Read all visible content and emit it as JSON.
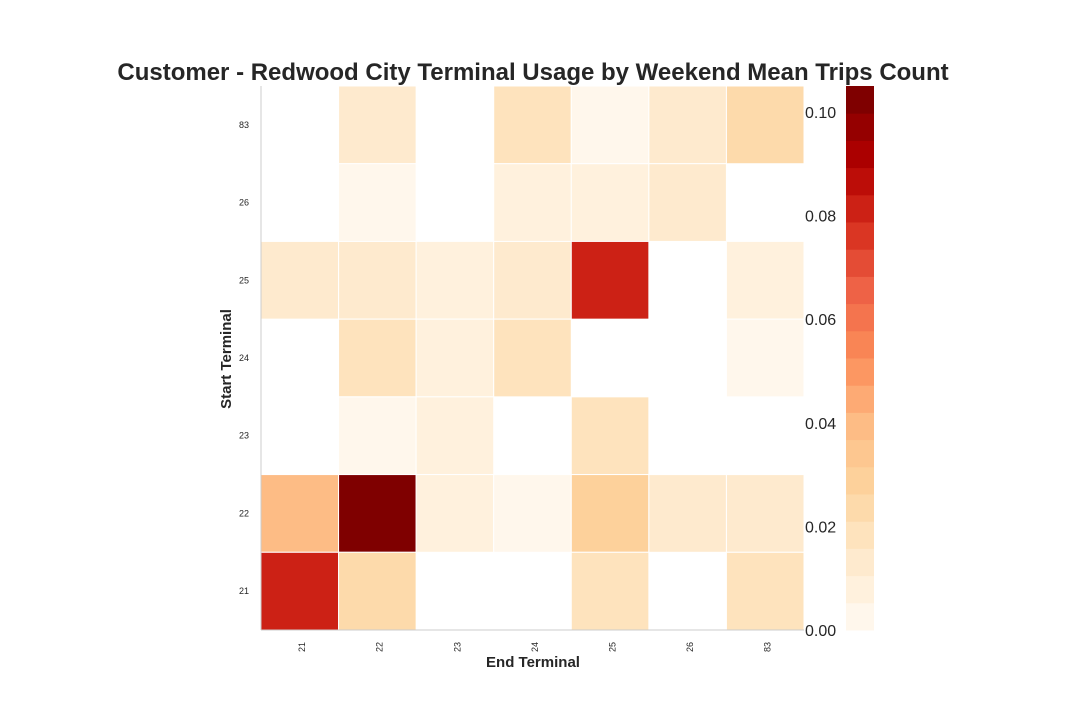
{
  "chart_data": {
    "type": "heatmap",
    "title": "Customer - Redwood City Terminal Usage by Weekend Mean Trips Count",
    "xlabel": "End Terminal",
    "ylabel": "Start Terminal",
    "x_categories": [
      "21",
      "22",
      "23",
      "24",
      "25",
      "26",
      "83"
    ],
    "y_categories": [
      "83",
      "26",
      "25",
      "24",
      "23",
      "22",
      "21"
    ],
    "values": [
      [
        null,
        0.012,
        null,
        0.018,
        0.005,
        0.011,
        0.026
      ],
      [
        null,
        0.005,
        null,
        0.009,
        0.009,
        0.012,
        null
      ],
      [
        0.011,
        0.014,
        0.009,
        0.011,
        0.08,
        null,
        0.008
      ],
      [
        null,
        0.019,
        0.006,
        0.019,
        null,
        null,
        0.005
      ],
      [
        null,
        0.005,
        0.008,
        null,
        0.016,
        null,
        null
      ],
      [
        0.04,
        0.105,
        0.008,
        0.005,
        0.028,
        0.011,
        0.011
      ],
      [
        0.08,
        0.023,
        null,
        null,
        0.017,
        null,
        0.016
      ]
    ],
    "colorbar": {
      "range": [
        0.0,
        0.105
      ],
      "ticks": [
        "0.00",
        "0.02",
        "0.04",
        "0.06",
        "0.08",
        "0.10"
      ],
      "tick_values": [
        0.0,
        0.02,
        0.04,
        0.06,
        0.08,
        0.1
      ],
      "colormap": "OrRd",
      "levels": 20
    },
    "grid": false,
    "colors": {
      "scale": [
        "#fff7ec",
        "#fee8c8",
        "#fdd49e",
        "#fdbb84",
        "#fc8d59",
        "#ef6548",
        "#d7301f",
        "#b30000",
        "#7f0000"
      ],
      "cell_border": "#ffffff",
      "axis_line": "#cccccc"
    }
  }
}
